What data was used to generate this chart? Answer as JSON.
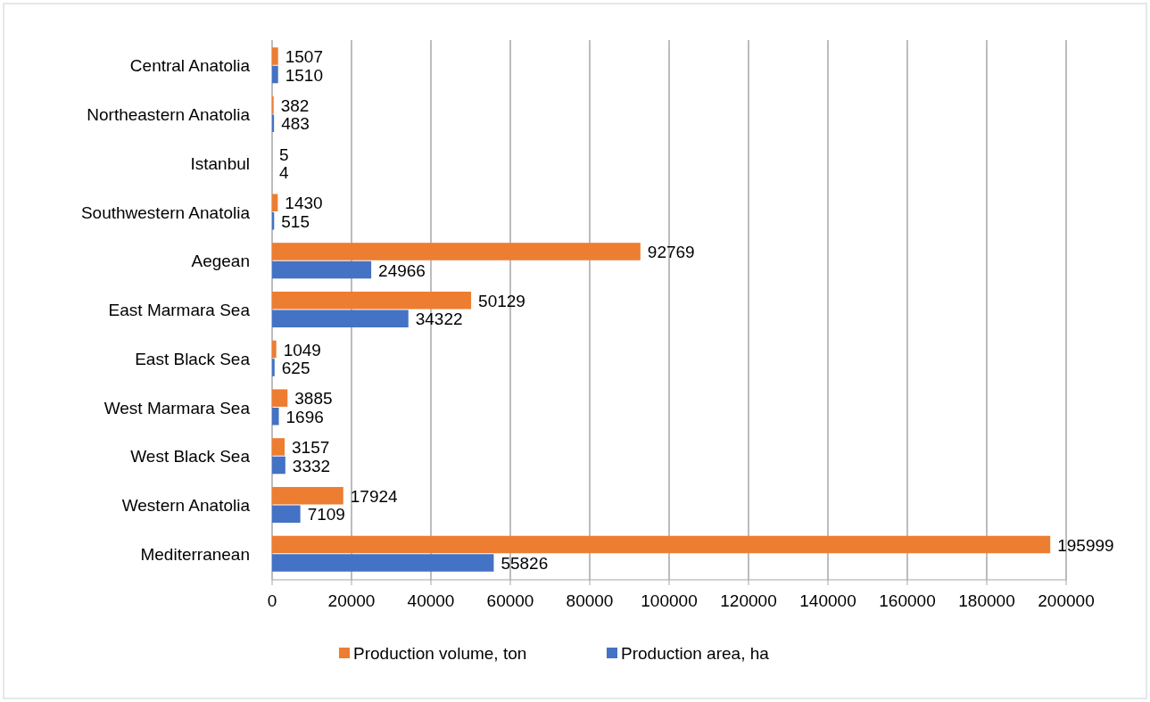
{
  "chart_data": {
    "type": "bar",
    "orientation": "horizontal",
    "categories": [
      "Central Anatolia",
      "Northeastern Anatolia",
      "Istanbul",
      "Southwestern Anatolia",
      "Aegean",
      "East Marmara Sea",
      "East Black Sea",
      "West Marmara Sea",
      "West Black Sea",
      "Western Anatolia",
      "Mediterranean"
    ],
    "series": [
      {
        "name": "Production volume, ton",
        "color": "#ed7d31",
        "values": [
          1507,
          382,
          5,
          1430,
          92769,
          50129,
          1049,
          3885,
          3157,
          17924,
          195999
        ]
      },
      {
        "name": "Production area, ha",
        "color": "#4472c4",
        "values": [
          1510,
          483,
          4,
          515,
          24966,
          34322,
          625,
          1696,
          3332,
          7109,
          55826
        ]
      }
    ],
    "xlim": [
      0,
      200000
    ],
    "xticks": [
      0,
      20000,
      40000,
      60000,
      80000,
      100000,
      120000,
      140000,
      160000,
      180000,
      200000
    ],
    "grid": "x",
    "legend": "bottom",
    "data_labels": true
  }
}
